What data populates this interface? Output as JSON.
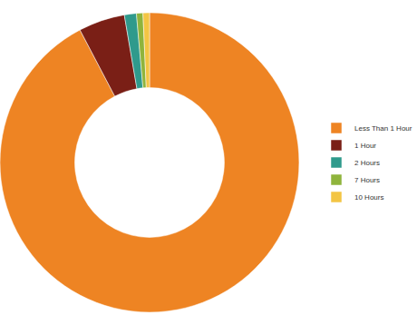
{
  "chart_data": {
    "type": "pie",
    "categories": [
      "Less Than 1 Hour",
      "1 Hour",
      "2 Hours",
      "7 Hours",
      "10 Hours"
    ],
    "values": [
      92.3,
      5,
      1.3,
      0.7,
      0.7
    ],
    "colors": [
      "#ee8423",
      "#7a1f16",
      "#2f9a8c",
      "#8fb43c",
      "#f3c544"
    ],
    "legend": "right",
    "data_labels": false
  }
}
